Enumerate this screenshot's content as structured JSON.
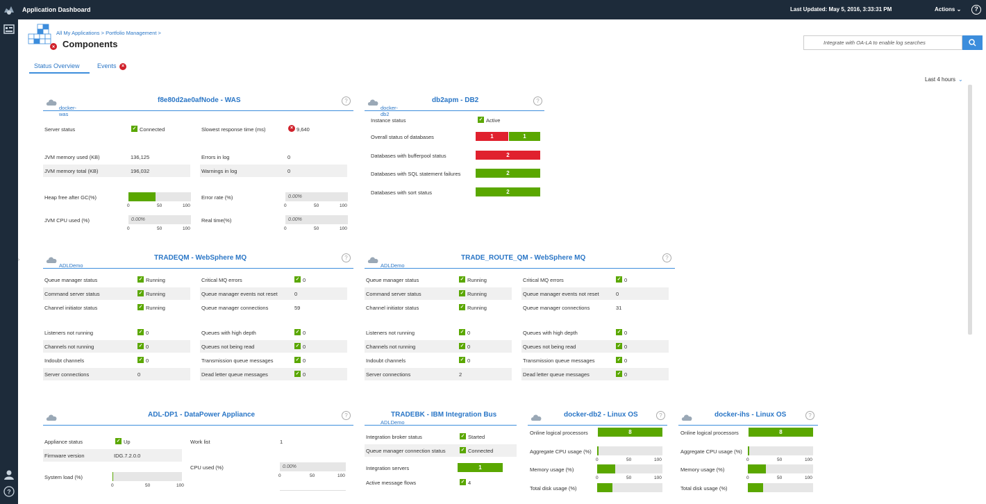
{
  "topbar": {
    "title": "Application Dashboard",
    "last_updated": "Last Updated: May 5, 2016, 3:33:31 PM",
    "actions": "Actions",
    "help": "?"
  },
  "header": {
    "breadcrumb": "All My Applications > Portfolio Management >",
    "title": "Components",
    "search_placeholder": "Integrate with OA-LA to enable log searches"
  },
  "tabs": {
    "status": "Status Overview",
    "events": "Events"
  },
  "timerange": "Last 4 hours",
  "was": {
    "title": "f8e80d2ae0afNode - WAS",
    "sub": "docker-was",
    "server_status_label": "Server status",
    "server_status": "Connected",
    "slowest_label": "Slowest response time (ms)",
    "slowest": "9,640",
    "jvm_used_label": "JVM memory used (KB)",
    "jvm_used": "136,125",
    "errors_label": "Errors in log",
    "errors": "0",
    "jvm_total_label": "JVM memory total (KB)",
    "jvm_total": "196,032",
    "warnings_label": "Warnings in log",
    "warnings": "0",
    "heap_label": "Heap free after GC(%)",
    "heap_pct": 43,
    "error_rate_label": "Error rate (%)",
    "error_rate": "0.00%",
    "cpu_label": "JVM CPU used (%)",
    "cpu": "0.00%",
    "realtime_label": "Real time(%)",
    "realtime": "0.00%",
    "ticks": [
      "0",
      "50",
      "100"
    ]
  },
  "db2": {
    "title": "db2apm - DB2",
    "sub": "docker-db2",
    "instance_label": "Instance status",
    "instance": "Active",
    "overall_label": "Overall status of databases",
    "overall_red": "1",
    "overall_green": "1",
    "bufferpool_label": "Databases with bufferpool status",
    "bufferpool": "2",
    "sql_label": "Databases with SQL statement failures",
    "sql": "2",
    "sort_label": "Databases with sort status",
    "sort": "2"
  },
  "mq1": {
    "title": "TRADEQM - WebSphere MQ",
    "sub": "ADLDemo",
    "left": [
      {
        "label": "Queue manager status",
        "value": "Running",
        "check": true
      },
      {
        "label": "Command server status",
        "value": "Running",
        "check": true
      },
      {
        "label": "Channel initiator status",
        "value": "Running",
        "check": true
      },
      {
        "label": "Listeners not running",
        "value": "0",
        "check": true
      },
      {
        "label": "Channels not running",
        "value": "0",
        "check": true
      },
      {
        "label": "Indoubt channels",
        "value": "0",
        "check": true
      },
      {
        "label": "Server connections",
        "value": "0",
        "check": false
      }
    ],
    "right": [
      {
        "label": "Critical MQ errors",
        "value": "0",
        "check": true
      },
      {
        "label": "Queue manager events not reset",
        "value": "0",
        "check": false
      },
      {
        "label": "Queue manager connections",
        "value": "59",
        "check": false
      },
      {
        "label": "Queues with high depth",
        "value": "0",
        "check": true
      },
      {
        "label": "Queues not being read",
        "value": "0",
        "check": true
      },
      {
        "label": "Transmission queue messages",
        "value": "0",
        "check": true
      },
      {
        "label": "Dead letter queue messages",
        "value": "0",
        "check": true
      }
    ]
  },
  "mq2": {
    "title": "TRADE_ROUTE_QM - WebSphere MQ",
    "sub": "ADLDemo",
    "left": [
      {
        "label": "Queue manager status",
        "value": "Running",
        "check": true
      },
      {
        "label": "Command server status",
        "value": "Running",
        "check": true
      },
      {
        "label": "Channel initiator status",
        "value": "Running",
        "check": true
      },
      {
        "label": "Listeners not running",
        "value": "0",
        "check": true
      },
      {
        "label": "Channels not running",
        "value": "0",
        "check": true
      },
      {
        "label": "Indoubt channels",
        "value": "0",
        "check": true
      },
      {
        "label": "Server connections",
        "value": "2",
        "check": false
      }
    ],
    "right": [
      {
        "label": "Critical MQ errors",
        "value": "0",
        "check": true
      },
      {
        "label": "Queue manager events not reset",
        "value": "0",
        "check": false
      },
      {
        "label": "Queue manager connections",
        "value": "31",
        "check": false
      },
      {
        "label": "Queues with high depth",
        "value": "0",
        "check": true
      },
      {
        "label": "Queues not being read",
        "value": "0",
        "check": true
      },
      {
        "label": "Transmission queue messages",
        "value": "0",
        "check": true
      },
      {
        "label": "Dead letter queue messages",
        "value": "0",
        "check": true
      }
    ]
  },
  "dp": {
    "title": "ADL-DP1 - DataPower Appliance",
    "appliance_label": "Appliance status",
    "appliance": "Up",
    "worklist_label": "Work list",
    "worklist": "1",
    "firmware_label": "Firmware version",
    "firmware": "IDG.7.2.0.0",
    "cpu_label": "CPU used (%)",
    "cpu": "0.00%",
    "load_label": "System load (%)",
    "load_pct": 1
  },
  "iib": {
    "title": "TRADEBK - IBM Integration Bus",
    "sub": "ADLDemo",
    "broker_label": "Integration broker status",
    "broker": "Started",
    "qmconn_label": "Queue manager connection status",
    "qmconn": "Connected",
    "servers_label": "Integration servers",
    "servers": "1",
    "flows_label": "Active message flows",
    "flows": "4"
  },
  "linux1": {
    "title": "docker-db2 - Linux OS",
    "procs_label": "Online logical processors",
    "procs": "8",
    "cpu_label": "Aggregate CPU usage (%)",
    "cpu_pct": 2,
    "mem_label": "Memory usage (%)",
    "mem_pct": 28,
    "disk_label": "Total disk usage (%)",
    "disk_pct": 23
  },
  "linux2": {
    "title": "docker-ihs - Linux OS",
    "procs_label": "Online logical processors",
    "procs": "8",
    "cpu_label": "Aggregate CPU usage (%)",
    "cpu_pct": 2,
    "mem_label": "Memory usage (%)",
    "mem_pct": 28,
    "disk_label": "Total disk usage (%)",
    "disk_pct": 23
  }
}
